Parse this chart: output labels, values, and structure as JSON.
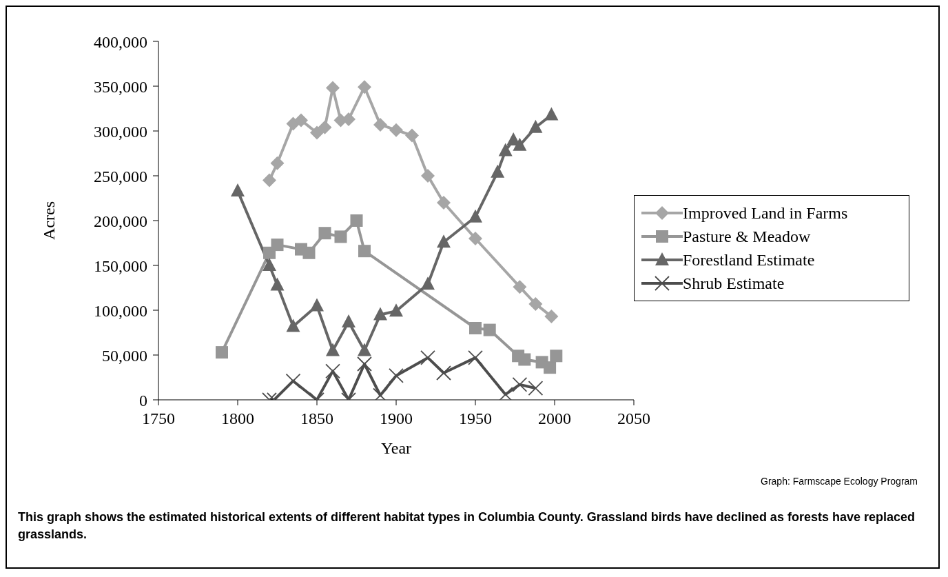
{
  "chart_data": {
    "type": "line",
    "xlabel": "Year",
    "ylabel": "Acres",
    "xlim": [
      1750,
      2050
    ],
    "xticks": [
      1750,
      1800,
      1850,
      1900,
      1950,
      2000,
      2050
    ],
    "ylim": [
      0,
      400000
    ],
    "yticks": [
      0,
      {
        "value": 50000,
        "label": "50,000"
      },
      {
        "value": 100000,
        "label": "100,000"
      },
      {
        "value": 150000,
        "label": "150,000"
      },
      {
        "value": 200000,
        "label": "200,000"
      },
      {
        "value": 250000,
        "label": "250,000"
      },
      {
        "value": 300000,
        "label": "300,000"
      },
      {
        "value": 350000,
        "label": "350,000"
      },
      {
        "value": 400000,
        "label": "400,000"
      }
    ],
    "grid": false,
    "legend": "right",
    "annotations": [
      "Graph: Farmscape Ecology Program",
      "This graph shows the estimated historical extents of different habitat types in Columbia County. Grassland birds have declined as forests have replaced grasslands."
    ],
    "series": [
      {
        "name": "Improved Land in Farms",
        "color": "#a6a6a6",
        "marker": "diamond",
        "x": [
          1820,
          1825,
          1835,
          1840,
          1850,
          1855,
          1860,
          1865,
          1870,
          1880,
          1890,
          1900,
          1910,
          1920,
          1930,
          1950,
          1978,
          1988,
          1998
        ],
        "values": [
          245000,
          264000,
          308000,
          312000,
          298000,
          304000,
          348000,
          312000,
          313000,
          349000,
          307000,
          301000,
          295000,
          250000,
          220000,
          180000,
          126000,
          107000,
          93000
        ]
      },
      {
        "name": "Pasture & Meadow",
        "color": "#969696",
        "marker": "square",
        "x": [
          1790,
          1820,
          1825,
          1840,
          1845,
          1855,
          1865,
          1875,
          1880,
          1950,
          1959,
          1977,
          1981,
          1992,
          1997,
          2001
        ],
        "values": [
          53000,
          164000,
          173000,
          168000,
          164000,
          186000,
          182000,
          200000,
          166000,
          80000,
          78000,
          49000,
          45000,
          42000,
          36000,
          49000
        ]
      },
      {
        "name": "Forestland Estimate",
        "color": "#666666",
        "marker": "triangle",
        "x": [
          1800,
          1820,
          1825,
          1835,
          1850,
          1860,
          1870,
          1880,
          1890,
          1900,
          1920,
          1930,
          1950,
          1964,
          1969,
          1974,
          1978,
          1988,
          1998
        ],
        "values": [
          233000,
          150000,
          128000,
          82000,
          105000,
          55000,
          87000,
          55000,
          95000,
          99000,
          129000,
          176000,
          204000,
          254000,
          278000,
          290000,
          284000,
          304000,
          318000
        ]
      },
      {
        "name": "Shrub Estimate",
        "color": "#4d4d4d",
        "marker": "cross",
        "x": [
          1820,
          1823,
          1835,
          1850,
          1860,
          1870,
          1880,
          1890,
          1900,
          1920,
          1930,
          1950,
          1969,
          1978,
          1988
        ],
        "values": [
          0,
          0,
          21000,
          0,
          32000,
          0,
          40000,
          5000,
          27000,
          47000,
          30000,
          47000,
          6000,
          17000,
          13000
        ]
      }
    ]
  }
}
